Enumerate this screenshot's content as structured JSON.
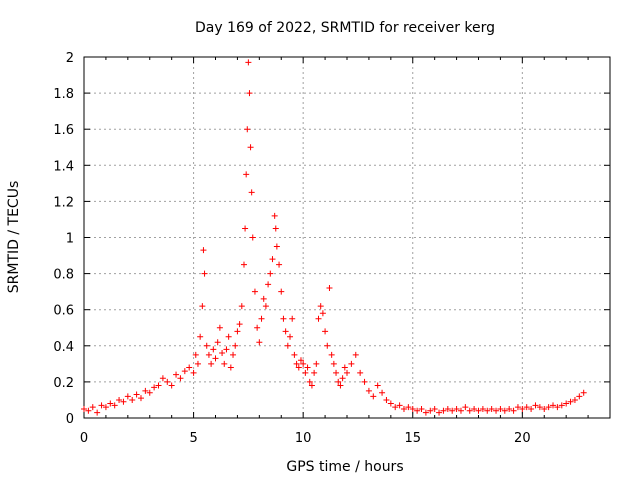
{
  "chart_data": {
    "type": "scatter",
    "title": "Day 169 of 2022, SRMTID for receiver kerg",
    "xlabel": "GPS time / hours",
    "ylabel": "SRMTID / TECUs",
    "xlim": [
      0,
      24
    ],
    "ylim": [
      0,
      2
    ],
    "grid": true,
    "marker": "+",
    "series_color": "#ff0000",
    "x_ticks": [
      0,
      5,
      10,
      15,
      20
    ],
    "x_tick_labels": [
      "0",
      "5",
      "10",
      "15",
      "20"
    ],
    "y_ticks": [
      0,
      0.2,
      0.4,
      0.6,
      0.8,
      1,
      1.2,
      1.4,
      1.6,
      1.8,
      2
    ],
    "y_tick_labels": [
      "0",
      "0.2",
      "0.4",
      "0.6",
      "0.8",
      "1",
      "1.2",
      "1.4",
      "1.6",
      "1.8",
      "2"
    ],
    "series": [
      {
        "name": "SRMTID",
        "points": [
          [
            0.0,
            0.05
          ],
          [
            0.2,
            0.04
          ],
          [
            0.4,
            0.06
          ],
          [
            0.6,
            0.03
          ],
          [
            0.8,
            0.07
          ],
          [
            1.0,
            0.06
          ],
          [
            1.2,
            0.08
          ],
          [
            1.4,
            0.07
          ],
          [
            1.6,
            0.1
          ],
          [
            1.8,
            0.09
          ],
          [
            2.0,
            0.12
          ],
          [
            2.2,
            0.1
          ],
          [
            2.4,
            0.13
          ],
          [
            2.6,
            0.11
          ],
          [
            2.8,
            0.15
          ],
          [
            3.0,
            0.14
          ],
          [
            3.2,
            0.17
          ],
          [
            3.4,
            0.18
          ],
          [
            3.6,
            0.22
          ],
          [
            3.8,
            0.2
          ],
          [
            4.0,
            0.18
          ],
          [
            4.2,
            0.24
          ],
          [
            4.4,
            0.22
          ],
          [
            4.6,
            0.26
          ],
          [
            4.8,
            0.28
          ],
          [
            5.0,
            0.25
          ],
          [
            5.1,
            0.35
          ],
          [
            5.2,
            0.3
          ],
          [
            5.3,
            0.45
          ],
          [
            5.4,
            0.62
          ],
          [
            5.45,
            0.93
          ],
          [
            5.5,
            0.8
          ],
          [
            5.6,
            0.4
          ],
          [
            5.7,
            0.35
          ],
          [
            5.8,
            0.3
          ],
          [
            5.9,
            0.38
          ],
          [
            6.0,
            0.33
          ],
          [
            6.1,
            0.42
          ],
          [
            6.2,
            0.5
          ],
          [
            6.3,
            0.36
          ],
          [
            6.4,
            0.3
          ],
          [
            6.5,
            0.38
          ],
          [
            6.6,
            0.45
          ],
          [
            6.7,
            0.28
          ],
          [
            6.8,
            0.35
          ],
          [
            6.9,
            0.4
          ],
          [
            7.0,
            0.48
          ],
          [
            7.1,
            0.52
          ],
          [
            7.2,
            0.62
          ],
          [
            7.3,
            0.85
          ],
          [
            7.35,
            1.05
          ],
          [
            7.4,
            1.35
          ],
          [
            7.45,
            1.6
          ],
          [
            7.5,
            1.97
          ],
          [
            7.55,
            1.8
          ],
          [
            7.6,
            1.5
          ],
          [
            7.65,
            1.25
          ],
          [
            7.7,
            1.0
          ],
          [
            7.8,
            0.7
          ],
          [
            7.9,
            0.5
          ],
          [
            8.0,
            0.42
          ],
          [
            8.1,
            0.55
          ],
          [
            8.2,
            0.66
          ],
          [
            8.3,
            0.62
          ],
          [
            8.4,
            0.74
          ],
          [
            8.5,
            0.8
          ],
          [
            8.6,
            0.88
          ],
          [
            8.7,
            1.12
          ],
          [
            8.75,
            1.05
          ],
          [
            8.8,
            0.95
          ],
          [
            8.9,
            0.85
          ],
          [
            9.0,
            0.7
          ],
          [
            9.1,
            0.55
          ],
          [
            9.2,
            0.48
          ],
          [
            9.3,
            0.4
          ],
          [
            9.4,
            0.45
          ],
          [
            9.5,
            0.55
          ],
          [
            9.6,
            0.35
          ],
          [
            9.7,
            0.3
          ],
          [
            9.8,
            0.28
          ],
          [
            9.9,
            0.32
          ],
          [
            10.0,
            0.3
          ],
          [
            10.1,
            0.25
          ],
          [
            10.2,
            0.28
          ],
          [
            10.3,
            0.2
          ],
          [
            10.4,
            0.18
          ],
          [
            10.5,
            0.25
          ],
          [
            10.6,
            0.3
          ],
          [
            10.7,
            0.55
          ],
          [
            10.8,
            0.62
          ],
          [
            10.9,
            0.58
          ],
          [
            11.0,
            0.48
          ],
          [
            11.1,
            0.4
          ],
          [
            11.2,
            0.72
          ],
          [
            11.3,
            0.35
          ],
          [
            11.4,
            0.3
          ],
          [
            11.5,
            0.25
          ],
          [
            11.6,
            0.2
          ],
          [
            11.7,
            0.18
          ],
          [
            11.8,
            0.22
          ],
          [
            11.9,
            0.28
          ],
          [
            12.0,
            0.25
          ],
          [
            12.2,
            0.3
          ],
          [
            12.4,
            0.35
          ],
          [
            12.6,
            0.25
          ],
          [
            12.8,
            0.2
          ],
          [
            13.0,
            0.15
          ],
          [
            13.2,
            0.12
          ],
          [
            13.4,
            0.18
          ],
          [
            13.6,
            0.14
          ],
          [
            13.8,
            0.1
          ],
          [
            14.0,
            0.08
          ],
          [
            14.2,
            0.06
          ],
          [
            14.4,
            0.07
          ],
          [
            14.6,
            0.05
          ],
          [
            14.8,
            0.06
          ],
          [
            15.0,
            0.05
          ],
          [
            15.2,
            0.04
          ],
          [
            15.4,
            0.05
          ],
          [
            15.6,
            0.03
          ],
          [
            15.8,
            0.04
          ],
          [
            16.0,
            0.05
          ],
          [
            16.2,
            0.03
          ],
          [
            16.4,
            0.04
          ],
          [
            16.6,
            0.05
          ],
          [
            16.8,
            0.04
          ],
          [
            17.0,
            0.05
          ],
          [
            17.2,
            0.04
          ],
          [
            17.4,
            0.06
          ],
          [
            17.6,
            0.04
          ],
          [
            17.8,
            0.05
          ],
          [
            18.0,
            0.04
          ],
          [
            18.2,
            0.05
          ],
          [
            18.4,
            0.04
          ],
          [
            18.6,
            0.05
          ],
          [
            18.8,
            0.04
          ],
          [
            19.0,
            0.05
          ],
          [
            19.2,
            0.04
          ],
          [
            19.4,
            0.05
          ],
          [
            19.6,
            0.04
          ],
          [
            19.8,
            0.06
          ],
          [
            20.0,
            0.05
          ],
          [
            20.2,
            0.06
          ],
          [
            20.4,
            0.05
          ],
          [
            20.6,
            0.07
          ],
          [
            20.8,
            0.06
          ],
          [
            21.0,
            0.05
          ],
          [
            21.2,
            0.06
          ],
          [
            21.4,
            0.07
          ],
          [
            21.6,
            0.06
          ],
          [
            21.8,
            0.07
          ],
          [
            22.0,
            0.08
          ],
          [
            22.2,
            0.09
          ],
          [
            22.4,
            0.1
          ],
          [
            22.6,
            0.12
          ],
          [
            22.8,
            0.14
          ]
        ]
      }
    ]
  }
}
